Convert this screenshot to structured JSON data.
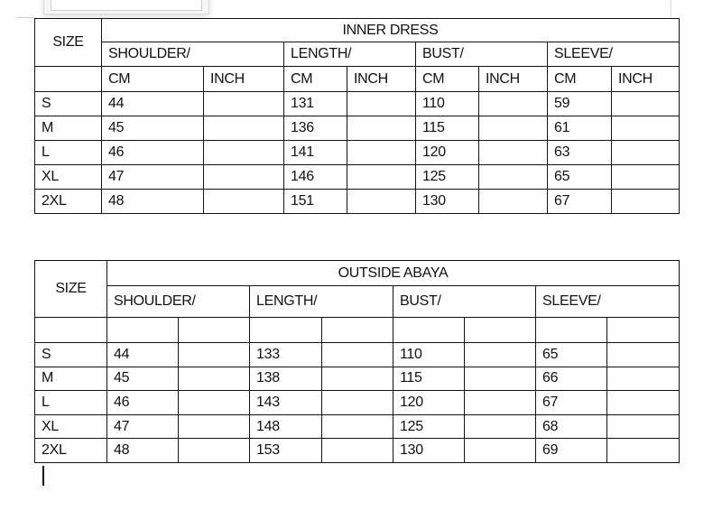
{
  "inner": {
    "title": "INNER DRESS",
    "size_label": "SIZE",
    "measures": [
      "SHOULDER/",
      "LENGTH/",
      "BUST/",
      "SLEEVE/"
    ],
    "units": [
      "CM",
      "INCH",
      "CM",
      "INCH",
      "CM",
      "INCH",
      "CM",
      "INCH"
    ],
    "rows": [
      [
        "S",
        "44",
        "",
        "131",
        "",
        "110",
        "",
        "59",
        ""
      ],
      [
        "M",
        "45",
        "",
        "136",
        "",
        "115",
        "",
        "61",
        ""
      ],
      [
        "L",
        "46",
        "",
        "141",
        "",
        "120",
        "",
        "63",
        ""
      ],
      [
        "XL",
        "47",
        "",
        "146",
        "",
        "125",
        "",
        "65",
        ""
      ],
      [
        "2XL",
        "48",
        "",
        "151",
        "",
        "130",
        "",
        "67",
        ""
      ]
    ]
  },
  "outside": {
    "title": "OUTSIDE ABAYA",
    "size_label": "SIZE",
    "measures": [
      "SHOULDER/",
      "LENGTH/",
      "BUST/",
      "SLEEVE/"
    ],
    "units": [
      "",
      "",
      "",
      "",
      "",
      "",
      "",
      ""
    ],
    "rows": [
      [
        "S",
        "44",
        "",
        "133",
        "",
        "110",
        "",
        "65",
        ""
      ],
      [
        "M",
        "45",
        "",
        "138",
        "",
        "115",
        "",
        "66",
        ""
      ],
      [
        "L",
        "46",
        "",
        "143",
        "",
        "120",
        "",
        "67",
        ""
      ],
      [
        "XL",
        "47",
        "",
        "148",
        "",
        "125",
        "",
        "68",
        ""
      ],
      [
        "2XL",
        "48",
        "",
        "153",
        "",
        "130",
        "",
        "69",
        ""
      ]
    ]
  }
}
